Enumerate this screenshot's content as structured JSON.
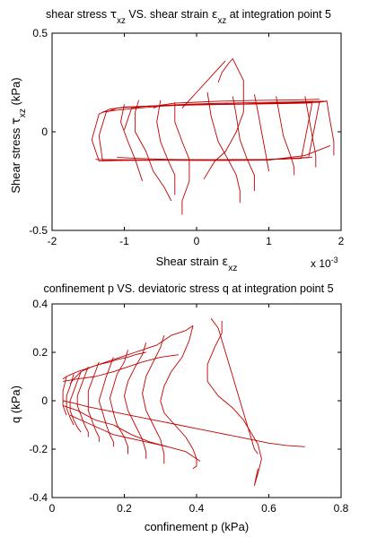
{
  "colors": {
    "curve": "#c00000",
    "axis": "#000000",
    "background": "#ffffff"
  },
  "chart_data": [
    {
      "type": "line",
      "title": {
        "parts": [
          {
            "t": "shear stress "
          },
          {
            "t": "τ",
            "sym": true
          },
          {
            "t": "xz",
            "sub": true
          },
          {
            "t": " VS. shear strain "
          },
          {
            "t": "ε",
            "sym": true
          },
          {
            "t": "xz",
            "sub": true
          },
          {
            "t": " at integration point 5"
          }
        ]
      },
      "xlabel": {
        "parts": [
          {
            "t": "Shear strain "
          },
          {
            "t": "ε",
            "sym": true
          },
          {
            "t": "xz",
            "sub": true
          }
        ]
      },
      "ylabel": {
        "parts": [
          {
            "t": "Shear stress "
          },
          {
            "t": "τ",
            "sym": true
          },
          {
            "t": "xz",
            "sub": true
          },
          {
            "t": " (kPa)"
          }
        ]
      },
      "x_exponent_label": "x 10",
      "x_exponent": "-3",
      "xlim": [
        -2,
        2
      ],
      "ylim": [
        -0.5,
        0.5
      ],
      "xticks": [
        -2,
        -1,
        0,
        1,
        2
      ],
      "xtick_labels": [
        "-2",
        "-1",
        "0",
        "1",
        "2"
      ],
      "yticks": [
        -0.5,
        0,
        0.5
      ],
      "ytick_labels": [
        "-0.5",
        "0",
        "0.5"
      ],
      "grid": false,
      "series": [
        {
          "x": [
            -1.35,
            -1.2,
            -1.0,
            -0.7,
            -0.3,
            0.1,
            0.5,
            0.9,
            1.3,
            1.55,
            1.7,
            1.55,
            1.0,
            0.5,
            0.0,
            -0.5,
            -1.0,
            -1.35,
            -1.45,
            -1.35
          ],
          "y": [
            0.09,
            0.115,
            0.125,
            0.13,
            0.135,
            0.138,
            0.14,
            0.143,
            0.145,
            0.148,
            0.15,
            -0.13,
            -0.14,
            -0.142,
            -0.143,
            -0.144,
            -0.145,
            -0.148,
            -0.04,
            0.09
          ]
        },
        {
          "x": [
            -1.25,
            -1.1,
            -0.8,
            -0.4,
            0.0,
            0.4,
            0.8,
            1.2,
            1.5,
            1.6,
            1.45,
            1.0,
            0.5,
            0.0,
            -0.5,
            -1.0,
            -1.3,
            -1.35,
            -1.25
          ],
          "y": [
            0.1,
            0.12,
            0.128,
            0.133,
            0.136,
            0.139,
            0.141,
            0.143,
            0.145,
            0.147,
            -0.135,
            -0.14,
            -0.141,
            -0.142,
            -0.143,
            -0.144,
            -0.146,
            -0.02,
            0.1
          ]
        },
        {
          "x": [
            -1.0,
            -0.9,
            -0.7,
            -0.4,
            -0.1,
            0.2,
            0.5,
            0.8,
            1.1,
            1.4,
            1.6,
            1.8,
            1.7
          ],
          "y": [
            0.01,
            0.12,
            0.13,
            0.135,
            0.14,
            0.143,
            0.146,
            0.148,
            0.15,
            0.152,
            0.154,
            0.155,
            0.15
          ]
        },
        {
          "x": [
            -1.3,
            -1.1,
            -0.8,
            -0.5,
            -0.2,
            0.1,
            0.4,
            0.7,
            1.0,
            1.3,
            1.6,
            1.8
          ],
          "y": [
            0.1,
            0.11,
            0.12,
            0.13,
            0.135,
            0.138,
            0.14,
            0.142,
            0.145,
            0.148,
            0.152,
            0.155
          ]
        },
        {
          "x": [
            -1.4,
            -1.0,
            -0.5,
            0.0,
            0.5,
            1.0,
            1.5,
            1.85
          ],
          "y": [
            -0.14,
            -0.142,
            -0.143,
            -0.145,
            -0.145,
            -0.143,
            -0.12,
            -0.07
          ]
        },
        {
          "x": [
            0.3,
            0.35,
            0.45,
            0.5,
            0.65,
            0.65,
            0.55,
            0.4,
            0.25,
            0.1
          ],
          "y": [
            0.25,
            0.3,
            0.35,
            0.37,
            0.26,
            0.1,
            0.0,
            -0.1,
            -0.15,
            -0.24
          ]
        },
        {
          "x": [
            -0.8,
            -0.85,
            -0.85,
            -0.7,
            -0.6,
            -0.45,
            -0.35
          ],
          "y": [
            0.16,
            0.1,
            0.0,
            -0.1,
            -0.2,
            -0.28,
            -0.35
          ]
        },
        {
          "x": [
            0.15,
            0.2,
            0.3,
            0.45,
            0.55,
            0.6,
            0.6
          ],
          "y": [
            0.2,
            0.08,
            -0.05,
            -0.15,
            -0.22,
            -0.3,
            -0.36
          ]
        },
        {
          "x": [
            -0.3,
            -0.3,
            -0.2,
            -0.1,
            -0.1,
            -0.2,
            -0.2
          ],
          "y": [
            0.15,
            0.05,
            -0.05,
            -0.14,
            -0.25,
            -0.35,
            -0.42
          ]
        },
        {
          "x": [
            -1.0,
            -1.05,
            -0.95,
            -0.85,
            -0.75
          ],
          "y": [
            0.14,
            0.05,
            -0.05,
            -0.14,
            -0.25
          ]
        },
        {
          "x": [
            -0.5,
            -0.55,
            -0.5,
            -0.4,
            -0.3,
            -0.3
          ],
          "y": [
            0.16,
            0.05,
            -0.05,
            -0.14,
            -0.22,
            -0.32
          ]
        },
        {
          "x": [
            0.5,
            0.55,
            0.6,
            0.7,
            0.8,
            0.8
          ],
          "y": [
            0.18,
            0.08,
            -0.04,
            -0.14,
            -0.22,
            -0.3
          ]
        },
        {
          "x": [
            0.8,
            0.85,
            0.9,
            0.95,
            1.0
          ],
          "y": [
            0.19,
            0.1,
            0.0,
            -0.1,
            -0.2
          ]
        },
        {
          "x": [
            1.1,
            1.15,
            1.2,
            1.3,
            1.35,
            1.35
          ],
          "y": [
            0.18,
            0.08,
            -0.02,
            -0.12,
            -0.18,
            -0.22
          ]
        },
        {
          "x": [
            1.5,
            1.55,
            1.6,
            1.65,
            1.65
          ],
          "y": [
            0.18,
            0.08,
            -0.02,
            -0.12,
            -0.18
          ]
        },
        {
          "x": [
            1.8,
            1.85,
            1.9,
            1.9
          ],
          "y": [
            0.16,
            0.05,
            -0.05,
            -0.12
          ]
        },
        {
          "x": [
            -0.6,
            -0.5,
            -0.3,
            0.0,
            0.3,
            0.7,
            1.0,
            1.4,
            1.7
          ],
          "y": [
            0.12,
            0.135,
            0.145,
            0.15,
            0.155,
            0.158,
            0.16,
            0.162,
            0.165
          ]
        },
        {
          "x": [
            -1.1,
            -0.8,
            -0.4,
            0.0,
            0.4,
            0.8,
            1.2,
            1.6
          ],
          "y": [
            -0.13,
            -0.135,
            -0.14,
            -0.142,
            -0.143,
            -0.142,
            -0.138,
            -0.13
          ]
        },
        {
          "x": [
            -0.2,
            -0.1,
            0.0,
            0.1,
            0.2,
            0.3,
            0.4
          ],
          "y": [
            0.12,
            0.16,
            0.2,
            0.24,
            0.28,
            0.32,
            0.36
          ]
        }
      ]
    },
    {
      "type": "line",
      "title": {
        "parts": [
          {
            "t": "confinement p VS. deviatoric stress q at integration point 5"
          }
        ]
      },
      "xlabel": {
        "parts": [
          {
            "t": "confinement p (kPa)"
          }
        ]
      },
      "ylabel": {
        "parts": [
          {
            "t": "q (kPa)"
          }
        ]
      },
      "xlim": [
        0,
        0.8
      ],
      "ylim": [
        -0.4,
        0.4
      ],
      "xticks": [
        0,
        0.2,
        0.4,
        0.6,
        0.8
      ],
      "xtick_labels": [
        "0",
        "0.2",
        "0.4",
        "0.6",
        "0.8"
      ],
      "yticks": [
        -0.4,
        -0.2,
        0,
        0.2,
        0.4
      ],
      "ytick_labels": [
        "-0.4",
        "-0.2",
        "0",
        "0.2",
        "0.4"
      ],
      "grid": false,
      "series": [
        {
          "x": [
            0.03,
            0.04,
            0.055,
            0.07,
            0.09,
            0.11,
            0.13,
            0.15,
            0.17,
            0.19,
            0.21,
            0.23,
            0.25,
            0.27,
            0.29,
            0.31,
            0.33,
            0.35,
            0.37,
            0.39
          ],
          "y": [
            0.09,
            0.1,
            0.11,
            0.12,
            0.13,
            0.14,
            0.15,
            0.16,
            0.17,
            0.18,
            0.19,
            0.2,
            0.21,
            0.22,
            0.23,
            0.25,
            0.27,
            0.28,
            0.29,
            0.31
          ]
        },
        {
          "x": [
            0.03,
            0.06,
            0.1,
            0.15,
            0.2,
            0.25,
            0.3,
            0.35,
            0.4,
            0.45,
            0.5,
            0.55,
            0.6,
            0.65,
            0.7
          ],
          "y": [
            0.0,
            -0.01,
            -0.025,
            -0.04,
            -0.055,
            -0.07,
            -0.085,
            -0.1,
            -0.115,
            -0.13,
            -0.145,
            -0.16,
            -0.175,
            -0.185,
            -0.19
          ]
        },
        {
          "x": [
            0.39,
            0.38,
            0.36,
            0.33,
            0.31,
            0.3,
            0.31,
            0.34,
            0.37,
            0.39,
            0.4,
            0.4,
            0.39
          ],
          "y": [
            0.31,
            0.25,
            0.18,
            0.12,
            0.06,
            0.0,
            -0.05,
            -0.1,
            -0.15,
            -0.2,
            -0.24,
            -0.27,
            -0.28
          ]
        },
        {
          "x": [
            0.47,
            0.47,
            0.45,
            0.43,
            0.43,
            0.46,
            0.5,
            0.53,
            0.55,
            0.57,
            0.58,
            0.57,
            0.56,
            0.57
          ],
          "y": [
            0.33,
            0.28,
            0.22,
            0.15,
            0.08,
            0.02,
            -0.03,
            -0.08,
            -0.13,
            -0.18,
            -0.24,
            -0.3,
            -0.35,
            -0.28
          ]
        },
        {
          "x": [
            0.44,
            0.46,
            0.48,
            0.5,
            0.52,
            0.54,
            0.56,
            0.57
          ],
          "y": [
            0.34,
            0.3,
            0.2,
            0.1,
            0.0,
            -0.1,
            -0.2,
            -0.22
          ]
        },
        {
          "x": [
            0.31,
            0.3,
            0.28,
            0.26,
            0.25,
            0.26,
            0.28,
            0.3,
            0.31,
            0.31
          ],
          "y": [
            0.27,
            0.22,
            0.16,
            0.1,
            0.03,
            -0.04,
            -0.1,
            -0.16,
            -0.22,
            -0.26
          ]
        },
        {
          "x": [
            0.26,
            0.25,
            0.23,
            0.21,
            0.2,
            0.21,
            0.23,
            0.25,
            0.26,
            0.26
          ],
          "y": [
            0.24,
            0.19,
            0.14,
            0.08,
            0.02,
            -0.04,
            -0.1,
            -0.16,
            -0.21,
            -0.24
          ]
        },
        {
          "x": [
            0.21,
            0.2,
            0.18,
            0.17,
            0.16,
            0.17,
            0.18,
            0.2,
            0.21,
            0.21
          ],
          "y": [
            0.21,
            0.16,
            0.11,
            0.06,
            0.01,
            -0.05,
            -0.1,
            -0.15,
            -0.19,
            -0.22
          ]
        },
        {
          "x": [
            0.17,
            0.16,
            0.15,
            0.14,
            0.13,
            0.14,
            0.15,
            0.16,
            0.17,
            0.17
          ],
          "y": [
            0.18,
            0.14,
            0.1,
            0.05,
            0.0,
            -0.05,
            -0.1,
            -0.14,
            -0.17,
            -0.19
          ]
        },
        {
          "x": [
            0.13,
            0.12,
            0.11,
            0.1,
            0.1,
            0.1,
            0.11,
            0.12,
            0.13,
            0.13
          ],
          "y": [
            0.16,
            0.12,
            0.08,
            0.04,
            0.0,
            -0.04,
            -0.08,
            -0.12,
            -0.15,
            -0.17
          ]
        },
        {
          "x": [
            0.1,
            0.09,
            0.08,
            0.07,
            0.07,
            0.08,
            0.09,
            0.1,
            0.1
          ],
          "y": [
            0.14,
            0.1,
            0.06,
            0.02,
            -0.02,
            -0.06,
            -0.1,
            -0.13,
            -0.15
          ]
        },
        {
          "x": [
            0.08,
            0.07,
            0.06,
            0.05,
            0.05,
            0.06,
            0.07,
            0.08
          ],
          "y": [
            0.12,
            0.08,
            0.04,
            0.0,
            -0.04,
            -0.08,
            -0.11,
            -0.13
          ]
        },
        {
          "x": [
            0.06,
            0.05,
            0.04,
            0.04,
            0.05,
            0.06
          ],
          "y": [
            0.11,
            0.06,
            0.02,
            -0.03,
            -0.07,
            -0.1
          ]
        },
        {
          "x": [
            0.04,
            0.03,
            0.03,
            0.04
          ],
          "y": [
            0.1,
            0.04,
            -0.02,
            -0.06
          ]
        },
        {
          "x": [
            0.03,
            0.07,
            0.12,
            0.17,
            0.21,
            0.25,
            0.3,
            0.35
          ],
          "y": [
            0.08,
            0.09,
            0.1,
            0.12,
            0.14,
            0.16,
            0.18,
            0.19
          ]
        },
        {
          "x": [
            0.03,
            0.07,
            0.12,
            0.17,
            0.22,
            0.27,
            0.32,
            0.37,
            0.41
          ],
          "y": [
            -0.02,
            -0.04,
            -0.08,
            -0.1,
            -0.14,
            -0.17,
            -0.19,
            -0.21,
            -0.25
          ]
        },
        {
          "x": [
            0.05,
            0.06,
            0.08,
            0.11,
            0.13,
            0.16,
            0.18,
            0.21,
            0.23,
            0.26
          ],
          "y": [
            0.07,
            0.09,
            0.12,
            0.14,
            0.15,
            0.16,
            0.17,
            0.18,
            0.19,
            0.2
          ]
        },
        {
          "x": [
            0.05,
            0.08,
            0.11,
            0.14,
            0.17,
            0.2,
            0.23,
            0.26,
            0.29,
            0.32
          ],
          "y": [
            -0.06,
            -0.08,
            -0.1,
            -0.12,
            -0.14,
            -0.15,
            -0.16,
            -0.17,
            -0.18,
            -0.19
          ]
        }
      ]
    }
  ]
}
